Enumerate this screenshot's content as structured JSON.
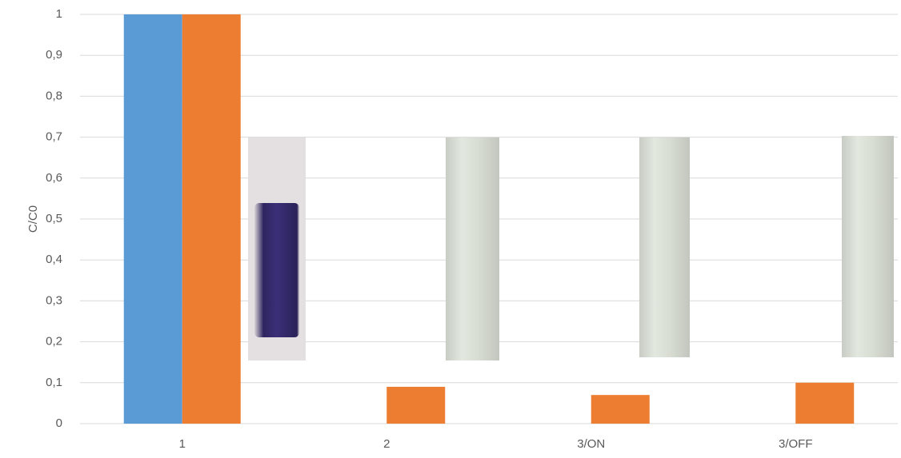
{
  "chart_data": {
    "type": "bar",
    "y_label": "C/C0",
    "categories": [
      "1",
      "2",
      "3/ON",
      "3/OFF"
    ],
    "series": [
      {
        "color": "#5b9bd5",
        "values": [
          1,
          0,
          0,
          0
        ]
      },
      {
        "color": "#ed7d31",
        "values": [
          1,
          0.09,
          0.07,
          0.1
        ]
      }
    ],
    "ylim": [
      0,
      1
    ],
    "yticks": [
      0,
      {
        "value": 0.1,
        "label": "0,1"
      },
      {
        "value": 0.2,
        "label": "0,2"
      },
      {
        "value": 0.3,
        "label": "0,3"
      },
      {
        "value": 0.4,
        "label": "0,4"
      },
      {
        "value": 0.5,
        "label": "0,5"
      },
      {
        "value": 0.6,
        "label": "0,6"
      },
      {
        "value": 0.7,
        "label": "0,7"
      },
      {
        "value": 0.8,
        "label": "0,8"
      },
      {
        "value": 0.9,
        "label": "0,9"
      },
      1
    ],
    "grid": true
  }
}
